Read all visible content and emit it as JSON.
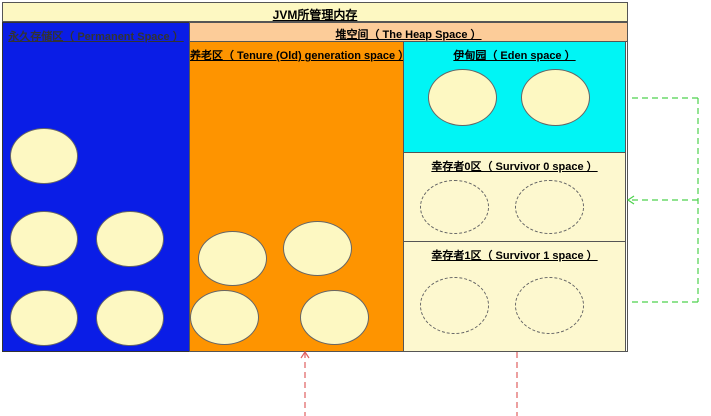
{
  "diagram": {
    "title": "JVM所管理内存",
    "permanent_label": "永久存储区（ Permanent Space ）",
    "heap_label": "堆空间（ The Heap Space ）",
    "tenure_label": "养老区（ Tenure (Old) generation space ）",
    "eden_label": "伊甸园（ Eden space ）",
    "survivor0_label": "幸存者0区（ Survivor 0 space ）",
    "survivor1_label": "幸存者1区（ Survivor 1 space ）"
  },
  "colors": {
    "title_bg": "#fdf8c2",
    "heap_header_bg": "#fccc99",
    "permanent": "#0a1de6",
    "tenure": "#fe9400",
    "eden": "#00f5f5",
    "survivor": "#fdf8cf",
    "object_fill": "#fdf8c2",
    "arrow_green": "#4dd24d",
    "arrow_red": "#e06060"
  },
  "objects": {
    "permanent_count": 5,
    "tenure_count": 4,
    "eden_count": 2,
    "survivor0_empty_count": 2,
    "survivor1_empty_count": 2
  }
}
